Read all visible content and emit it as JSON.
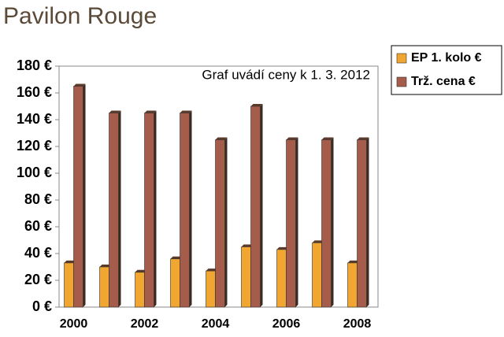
{
  "chart_data": {
    "type": "bar",
    "title": "Pavilon Rouge",
    "annotation": "Graf uvádí ceny k 1. 3. 2012",
    "categories": [
      "2000",
      null,
      "2002",
      null,
      "2004",
      null,
      "2006",
      null,
      "2008"
    ],
    "series": [
      {
        "name": "EP 1. kolo €",
        "color": "#f0a630",
        "values": [
          33,
          30,
          26,
          36,
          27,
          45,
          43,
          48,
          33
        ]
      },
      {
        "name": "Trž. cena €",
        "color": "#a65c4a",
        "values": [
          165,
          145,
          145,
          145,
          125,
          150,
          125,
          125,
          125
        ]
      }
    ],
    "ylim": [
      0,
      180
    ],
    "yticks": [
      {
        "value": 0,
        "label": "0 €"
      },
      {
        "value": 20,
        "label": "20 €"
      },
      {
        "value": 40,
        "label": "40 €"
      },
      {
        "value": 60,
        "label": "60 €"
      },
      {
        "value": 80,
        "label": "80 €"
      },
      {
        "value": 100,
        "label": "100 €"
      },
      {
        "value": 120,
        "label": "120 €"
      },
      {
        "value": 140,
        "label": "140 €"
      },
      {
        "value": 160,
        "label": "160 €"
      },
      {
        "value": 180,
        "label": "180 €"
      }
    ],
    "grid": false,
    "legend": "right"
  }
}
